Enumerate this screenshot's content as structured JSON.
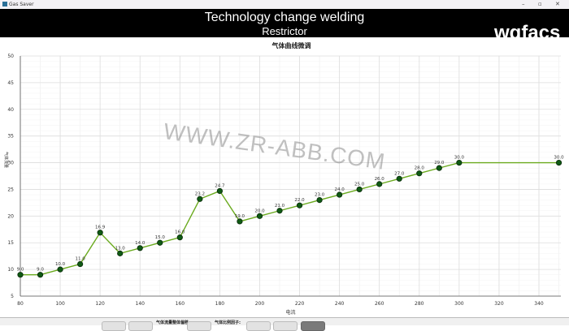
{
  "window": {
    "title": "Gas Saver",
    "controls": [
      "minimize-icon",
      "maximize-icon",
      "close-icon"
    ]
  },
  "header": {
    "title": "Technology change welding",
    "subtitle": "Restrictor",
    "logo_text": "wgfacs"
  },
  "watermark": "WWW.ZR-ABB.COM",
  "bottom": {
    "label1": "气体流量整体偏移:",
    "label2": "气体比例因子:"
  },
  "chart_data": {
    "type": "line",
    "title": "气体曲线微调",
    "xlabel": "电流",
    "ylabel": "气体流量",
    "xlim": [
      80,
      351
    ],
    "ylim": [
      5,
      50
    ],
    "xticks": [
      80,
      100,
      120,
      140,
      160,
      180,
      200,
      220,
      240,
      260,
      280,
      300,
      320,
      340
    ],
    "yticks": [
      5,
      10,
      15,
      20,
      25,
      30,
      35,
      40,
      45,
      50
    ],
    "grid": true,
    "line_color": "#6aaa1e",
    "marker_color": "#0f5a14",
    "x": [
      80,
      90,
      100,
      110,
      120,
      130,
      140,
      150,
      160,
      170,
      180,
      190,
      200,
      210,
      220,
      230,
      240,
      250,
      260,
      270,
      280,
      290,
      300,
      350
    ],
    "y": [
      9,
      9,
      10,
      11,
      16.9,
      13,
      14,
      15,
      16,
      23.2,
      24.7,
      19,
      20,
      21,
      22,
      23,
      24,
      25,
      26,
      27,
      28,
      29,
      30,
      30
    ],
    "labels": [
      "9.0",
      "9.0",
      "10.0",
      "11.0",
      "16.9",
      "13.0",
      "14.0",
      "15.0",
      "16.0",
      "23.2",
      "24.7",
      "19.0",
      "20.0",
      "21.0",
      "22.0",
      "23.0",
      "24.0",
      "25.0",
      "26.0",
      "27.0",
      "28.0",
      "29.0",
      "30.0",
      "30.0"
    ]
  }
}
